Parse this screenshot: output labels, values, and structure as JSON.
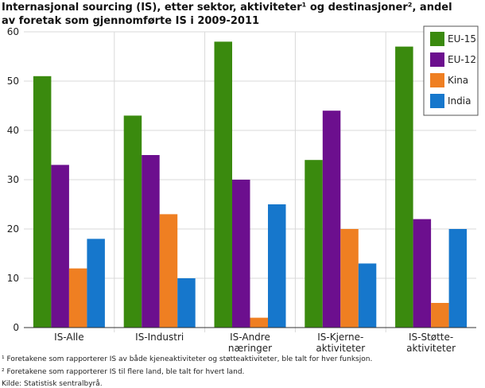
{
  "chart_data": {
    "type": "bar",
    "title_lines": [
      "Internasjonal sourcing (IS), etter sektor, aktiviteter¹ og destinasjoner², andel",
      "av foretak som gjennomførte IS i 2009-2011"
    ],
    "categories": [
      [
        "IS-Alle"
      ],
      [
        "IS-Industri"
      ],
      [
        "IS-Andre",
        "næringer"
      ],
      [
        "IS-Kjerne-",
        "aktiviteter"
      ],
      [
        "IS-Støtte-",
        "aktiviteter"
      ]
    ],
    "series": [
      {
        "name": "EU-15",
        "color": "#3a8a0e",
        "values": [
          51,
          43,
          58,
          34,
          57
        ]
      },
      {
        "name": "EU-12",
        "color": "#6c0f8e",
        "values": [
          33,
          35,
          30,
          44,
          22
        ]
      },
      {
        "name": "Kina",
        "color": "#ef7f22",
        "values": [
          12,
          23,
          2,
          20,
          5
        ]
      },
      {
        "name": "India",
        "color": "#1677cc",
        "values": [
          18,
          10,
          25,
          13,
          20
        ]
      }
    ],
    "yticks": [
      0,
      10,
      20,
      30,
      40,
      50,
      60
    ],
    "ylim": [
      0,
      60
    ],
    "grid": true,
    "legend_position": "top-right",
    "footnotes": [
      "¹ Foretakene som rapporterer IS av både kjeneaktiviteter og støtteaktiviteter, ble talt for hver  funksjon.",
      "² Foretakene som rapporterer IS til flere land, ble talt for hvert land.",
      "Kilde: Statistisk sentralbyrå."
    ]
  }
}
